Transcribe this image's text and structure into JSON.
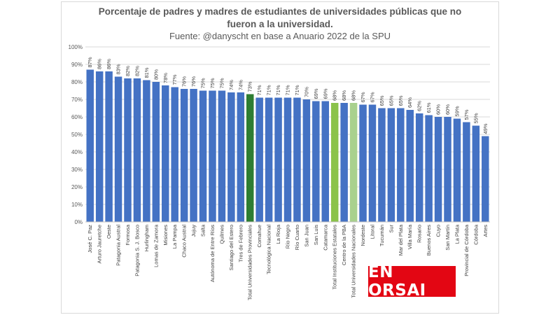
{
  "chart_data": {
    "type": "bar",
    "title": "Porcentaje de padres y madres de estudiantes de universidades públicas que no",
    "title_line2": "fueron a la universidad.",
    "subtitle": "Fuente: @danyscht en base a Anuario 2022 de la SPU",
    "xlabel": "",
    "ylabel": "",
    "ylim": [
      0,
      100
    ],
    "yticks": [
      "0%",
      "10%",
      "20%",
      "30%",
      "40%",
      "50%",
      "60%",
      "70%",
      "80%",
      "90%",
      "100%"
    ],
    "grid": true,
    "legend": "none",
    "categories": [
      "José C. Paz",
      "Arturo Jauretche",
      "Oeste",
      "Patagonia Austral",
      "Formosa",
      "Patagonia S. J. Bosco",
      "Hurlingham",
      "Lomas de Zamora",
      "Misiones",
      "La Pampa",
      "Chaco Austral",
      "Jujuy",
      "Salta",
      "Autónoma de Entre Ríos",
      "Quilmes",
      "Santiago del Estero",
      "Tres de Febrero",
      "Total Universidades Provinciales",
      "Comahue",
      "Tecnológica Nacional",
      "La Rioja",
      "Río Negro",
      "Río Cuarto",
      "San Juan",
      "San Luis",
      "Catamarca",
      "Total Instituciones Estatales",
      "Centro de la PBA",
      "Total Universidades Nacionales",
      "Nordeste",
      "Litoral",
      "Tucumán",
      "Sur",
      "Mar del Plata",
      "Villa María",
      "Rosario",
      "Buenos Aires",
      "Cuyo",
      "San Martín",
      "La Plata",
      "Provincial de Córdoba",
      "Córdoba",
      "Artes"
    ],
    "values": [
      87,
      86,
      86,
      83,
      82,
      82,
      81,
      80,
      78,
      77,
      76,
      76,
      75,
      75,
      75,
      74,
      74,
      73,
      71,
      71,
      71,
      71,
      71,
      70,
      69,
      69,
      68,
      68,
      68,
      67,
      67,
      65,
      65,
      65,
      64,
      62,
      61,
      60,
      60,
      59,
      57,
      55,
      49
    ],
    "data_labels": [
      "87%",
      "86%",
      "86%",
      "83%",
      "82%",
      "82%",
      "81%",
      "80%",
      "78%",
      "77%",
      "76%",
      "76%",
      "75%",
      "75%",
      "75%",
      "74%",
      "74%",
      "73%",
      "71%",
      "71%",
      "71%",
      "71%",
      "71%",
      "70%",
      "69%",
      "69%",
      "68%",
      "68%",
      "68%",
      "67%",
      "67%",
      "65%",
      "65%",
      "65%",
      "64%",
      "62%",
      "61%",
      "60%",
      "60%",
      "59%",
      "57%",
      "55%",
      "49%"
    ],
    "colors": {
      "default": "#4472c4",
      "Total Universidades Provinciales": "#2e7d32",
      "Total Instituciones Estatales": "#8bc34a",
      "Total Universidades Nacionales": "#a9d18e"
    }
  },
  "logo_text": "EN ORSAI",
  "logo_color": "#e30613"
}
